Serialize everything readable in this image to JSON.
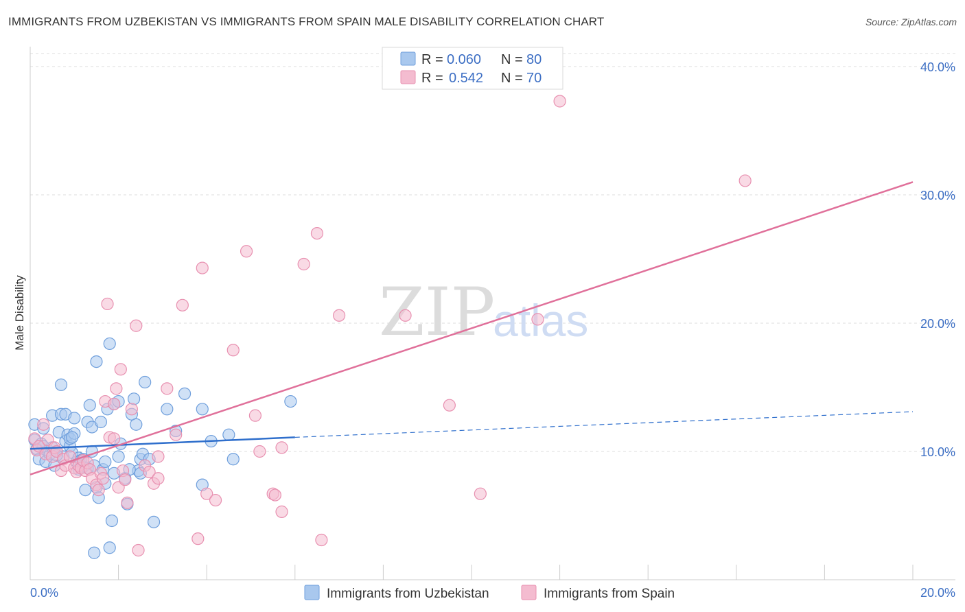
{
  "title": "IMMIGRANTS FROM UZBEKISTAN VS IMMIGRANTS FROM SPAIN MALE DISABILITY CORRELATION CHART",
  "source": "Source: ZipAtlas.com",
  "watermark": {
    "part1": "ZIP",
    "part2": "atlas"
  },
  "colors": {
    "blue_fill": "#a9c8ee",
    "blue_stroke": "#6f9fdc",
    "blue_line": "#2f6fcc",
    "pink_fill": "#f4bcd0",
    "pink_stroke": "#e890b0",
    "pink_line": "#e0709a",
    "tick_text": "#3d6fc4",
    "grid": "#dddddd"
  },
  "legend": [
    {
      "r_label": "R =",
      "r_value": "0.060",
      "n_label": "N =",
      "n_value": "80",
      "series": "uzbekistan"
    },
    {
      "r_label": "R =",
      "r_value": "0.542",
      "n_label": "N =",
      "n_value": "70",
      "series": "spain"
    }
  ],
  "chart_data": {
    "type": "scatter",
    "title": "IMMIGRANTS FROM UZBEKISTAN VS IMMIGRANTS FROM SPAIN MALE DISABILITY CORRELATION CHART",
    "xlabel": "",
    "ylabel": "Male Disability",
    "xlim": [
      0,
      20
    ],
    "ylim": [
      0,
      40
    ],
    "x_tick_labels": [
      "0.0%",
      "20.0%"
    ],
    "y_tick_labels": [
      {
        "value": 10,
        "label": "10.0%"
      },
      {
        "value": 20,
        "label": "20.0%"
      },
      {
        "value": 30,
        "label": "30.0%"
      },
      {
        "value": 40,
        "label": "40.0%"
      }
    ],
    "grid": true,
    "legend_position": "top-center",
    "series": [
      {
        "name": "Immigrants from Uzbekistan",
        "color": "blue",
        "trendline": {
          "x": [
            0,
            6.0
          ],
          "y": [
            10.2,
            11.1
          ],
          "dashed_extension": {
            "x": [
              6.0,
              20.0
            ],
            "y": [
              11.1,
              13.1
            ]
          }
        },
        "points": [
          [
            0.1,
            12.1
          ],
          [
            0.1,
            10.9
          ],
          [
            0.15,
            10.2
          ],
          [
            0.2,
            9.4
          ],
          [
            0.25,
            10.6
          ],
          [
            0.3,
            11.8
          ],
          [
            0.35,
            9.2
          ],
          [
            0.4,
            10.1
          ],
          [
            0.45,
            9.8
          ],
          [
            0.5,
            10.3
          ],
          [
            0.5,
            12.8
          ],
          [
            0.55,
            8.9
          ],
          [
            0.6,
            10.0
          ],
          [
            0.65,
            11.5
          ],
          [
            0.7,
            15.2
          ],
          [
            0.7,
            12.9
          ],
          [
            0.75,
            9.6
          ],
          [
            0.8,
            12.9
          ],
          [
            0.8,
            10.8
          ],
          [
            0.85,
            11.3
          ],
          [
            0.9,
            10.4
          ],
          [
            0.9,
            11.0
          ],
          [
            0.95,
            9.9
          ],
          [
            1.0,
            12.6
          ],
          [
            1.0,
            11.4
          ],
          [
            1.05,
            9.2
          ],
          [
            1.1,
            8.6
          ],
          [
            1.1,
            9.5
          ],
          [
            1.15,
            9.3
          ],
          [
            1.2,
            8.8
          ],
          [
            1.2,
            9.4
          ],
          [
            1.25,
            7.0
          ],
          [
            1.3,
            12.3
          ],
          [
            1.3,
            8.7
          ],
          [
            1.35,
            13.6
          ],
          [
            1.4,
            10.0
          ],
          [
            1.4,
            11.9
          ],
          [
            1.45,
            8.9
          ],
          [
            1.5,
            17.0
          ],
          [
            1.5,
            7.2
          ],
          [
            1.55,
            6.4
          ],
          [
            1.6,
            12.3
          ],
          [
            1.65,
            8.6
          ],
          [
            1.7,
            9.2
          ],
          [
            1.7,
            7.5
          ],
          [
            1.75,
            13.3
          ],
          [
            1.8,
            18.4
          ],
          [
            1.85,
            4.6
          ],
          [
            1.9,
            8.3
          ],
          [
            1.9,
            13.7
          ],
          [
            2.0,
            9.6
          ],
          [
            2.0,
            13.9
          ],
          [
            2.05,
            10.6
          ],
          [
            2.15,
            7.9
          ],
          [
            2.2,
            5.9
          ],
          [
            2.3,
            12.9
          ],
          [
            2.35,
            14.1
          ],
          [
            2.4,
            12.1
          ],
          [
            2.45,
            8.5
          ],
          [
            2.5,
            8.3
          ],
          [
            2.5,
            9.4
          ],
          [
            2.55,
            9.8
          ],
          [
            2.6,
            15.4
          ],
          [
            2.7,
            9.4
          ],
          [
            2.8,
            4.5
          ],
          [
            3.1,
            13.3
          ],
          [
            3.3,
            11.6
          ],
          [
            3.5,
            14.5
          ],
          [
            3.9,
            13.3
          ],
          [
            3.9,
            7.4
          ],
          [
            4.1,
            10.8
          ],
          [
            4.5,
            11.3
          ],
          [
            4.6,
            9.4
          ],
          [
            5.9,
            13.9
          ],
          [
            0.3,
            10.4
          ],
          [
            0.6,
            9.7
          ],
          [
            1.45,
            2.1
          ],
          [
            1.8,
            2.5
          ],
          [
            0.95,
            11.1
          ],
          [
            2.25,
            8.6
          ]
        ]
      },
      {
        "name": "Immigrants from Spain",
        "color": "pink",
        "trendline": {
          "x": [
            0,
            20
          ],
          "y": [
            8.2,
            31.0
          ]
        },
        "points": [
          [
            0.1,
            11.0
          ],
          [
            0.15,
            10.1
          ],
          [
            0.2,
            10.4
          ],
          [
            0.3,
            12.1
          ],
          [
            0.35,
            9.8
          ],
          [
            0.4,
            10.9
          ],
          [
            0.5,
            9.6
          ],
          [
            0.55,
            10.3
          ],
          [
            0.6,
            10.0
          ],
          [
            0.7,
            8.5
          ],
          [
            0.75,
            9.4
          ],
          [
            0.8,
            8.9
          ],
          [
            0.9,
            9.6
          ],
          [
            1.0,
            8.7
          ],
          [
            1.05,
            8.4
          ],
          [
            1.1,
            8.9
          ],
          [
            1.15,
            8.7
          ],
          [
            1.2,
            9.3
          ],
          [
            1.25,
            8.5
          ],
          [
            1.3,
            9.1
          ],
          [
            1.35,
            8.6
          ],
          [
            1.4,
            7.9
          ],
          [
            1.5,
            7.4
          ],
          [
            1.55,
            7.0
          ],
          [
            1.6,
            8.3
          ],
          [
            1.65,
            7.9
          ],
          [
            1.7,
            13.9
          ],
          [
            1.75,
            21.5
          ],
          [
            1.8,
            11.1
          ],
          [
            1.9,
            11.0
          ],
          [
            1.9,
            13.7
          ],
          [
            1.95,
            14.9
          ],
          [
            2.0,
            7.2
          ],
          [
            2.05,
            16.4
          ],
          [
            2.1,
            8.5
          ],
          [
            2.15,
            7.8
          ],
          [
            2.2,
            6.0
          ],
          [
            2.3,
            13.3
          ],
          [
            2.4,
            19.8
          ],
          [
            2.45,
            2.3
          ],
          [
            2.6,
            8.9
          ],
          [
            2.7,
            8.4
          ],
          [
            2.8,
            7.5
          ],
          [
            2.9,
            9.6
          ],
          [
            2.9,
            7.9
          ],
          [
            3.1,
            14.9
          ],
          [
            3.3,
            11.3
          ],
          [
            3.45,
            21.4
          ],
          [
            3.8,
            3.2
          ],
          [
            3.9,
            24.3
          ],
          [
            4.0,
            6.7
          ],
          [
            4.2,
            6.2
          ],
          [
            4.6,
            17.9
          ],
          [
            4.9,
            25.6
          ],
          [
            5.1,
            12.8
          ],
          [
            5.2,
            10.0
          ],
          [
            5.5,
            6.7
          ],
          [
            5.55,
            6.6
          ],
          [
            5.7,
            5.3
          ],
          [
            5.7,
            10.3
          ],
          [
            6.2,
            24.6
          ],
          [
            6.5,
            27.0
          ],
          [
            6.6,
            3.1
          ],
          [
            7.0,
            20.6
          ],
          [
            8.5,
            20.6
          ],
          [
            9.5,
            13.6
          ],
          [
            10.2,
            6.7
          ],
          [
            11.5,
            20.3
          ],
          [
            12.0,
            37.3
          ],
          [
            16.2,
            31.1
          ]
        ]
      }
    ]
  },
  "axis": {
    "y_label": "Male Disability",
    "x_min_label": "0.0%",
    "x_max_label": "20.0%"
  }
}
